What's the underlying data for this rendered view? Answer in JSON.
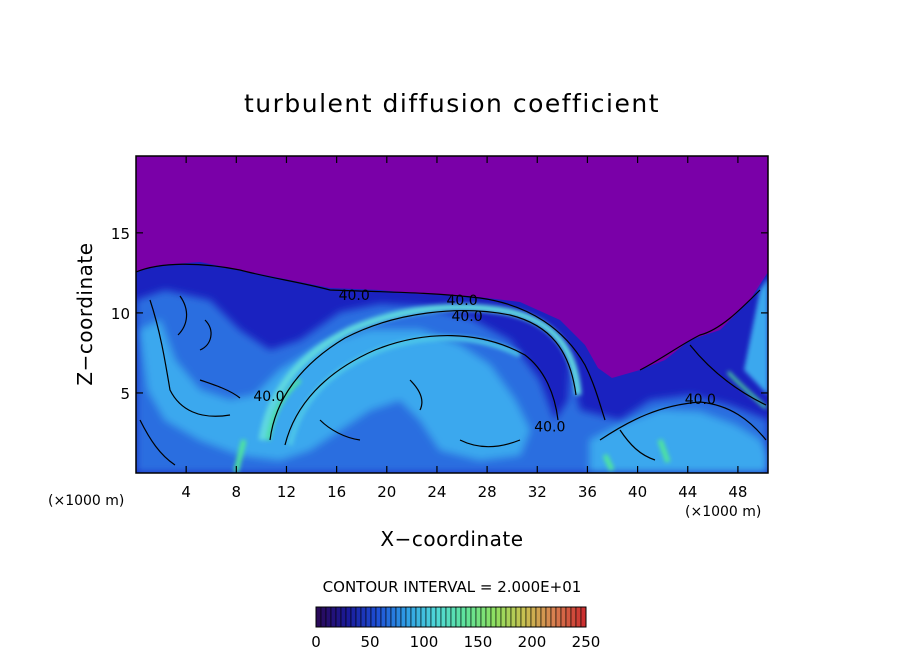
{
  "chart_data": {
    "type": "heatmap",
    "title": "turbulent diffusion coefficient",
    "xlabel": "X−coordinate",
    "ylabel": "Z−coordinate",
    "x_unit": "(×1000 m)",
    "y_unit": "(×1000 m)",
    "xlim": [
      0,
      50.4
    ],
    "ylim": [
      0,
      19.8
    ],
    "x_ticks": [
      4,
      8,
      12,
      16,
      20,
      24,
      28,
      32,
      36,
      40,
      44,
      48
    ],
    "y_ticks": [
      5,
      10,
      15
    ],
    "contour_interval_text": "CONTOUR INTERVAL = 2.000E+01",
    "contour_labels": [
      {
        "text": "40.0",
        "x": 17.4,
        "y": 10.8
      },
      {
        "text": "40.0",
        "x": 26.0,
        "y": 10.5
      },
      {
        "text": "40.0",
        "x": 26.4,
        "y": 9.5
      },
      {
        "text": "40.0",
        "x": 10.6,
        "y": 4.5
      },
      {
        "text": "40.0",
        "x": 33.0,
        "y": 2.6
      },
      {
        "text": "40.0",
        "x": 45.0,
        "y": 4.3
      }
    ],
    "colorbar": {
      "min": 0,
      "max": 250,
      "tick_values": [
        0,
        50,
        100,
        150,
        200,
        250
      ],
      "tick_labels": [
        "0",
        "50",
        "100",
        "150",
        "200",
        "250"
      ],
      "colors": [
        "#2a0a5a",
        "#1a1a9a",
        "#1e4fd6",
        "#2f9fe6",
        "#4fd8d8",
        "#5fe39a",
        "#8fe060",
        "#c8c050",
        "#d88050",
        "#cc3030"
      ]
    },
    "colors": {
      "background": "#7a00a8",
      "deep_blue": "#1a22c8",
      "mid_blue": "#2a6ee0",
      "light_blue": "#3aa8ee",
      "cyan": "#5fd8e0",
      "green": "#4fe89a",
      "contour": "#000000"
    }
  }
}
